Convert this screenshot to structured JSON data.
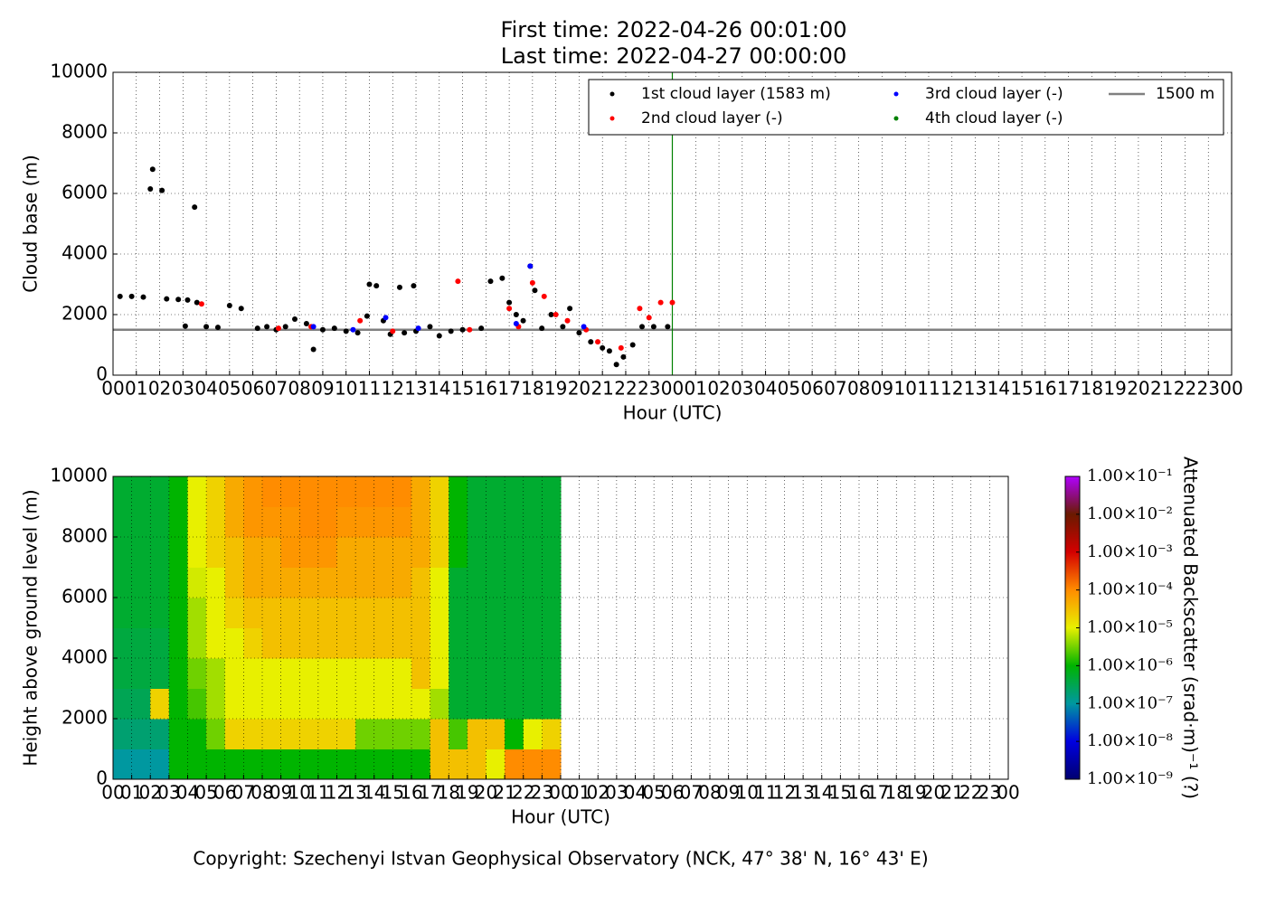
{
  "chart_data": [
    {
      "type": "scatter",
      "title": [
        "First time: 2022-04-26 00:01:00",
        "Last time: 2022-04-27 00:00:00"
      ],
      "xlabel": "Hour (UTC)",
      "ylabel": "Cloud base (m)",
      "xlim": [
        0,
        48
      ],
      "ylim": [
        0,
        10000
      ],
      "xticks": [
        {
          "value": 0,
          "label": "00"
        },
        {
          "value": 1,
          "label": "01"
        },
        {
          "value": 2,
          "label": "02"
        },
        {
          "value": 3,
          "label": "03"
        },
        {
          "value": 4,
          "label": "04"
        },
        {
          "value": 5,
          "label": "05"
        },
        {
          "value": 6,
          "label": "06"
        },
        {
          "value": 7,
          "label": "07"
        },
        {
          "value": 8,
          "label": "08"
        },
        {
          "value": 9,
          "label": "09"
        },
        {
          "value": 10,
          "label": "10"
        },
        {
          "value": 11,
          "label": "11"
        },
        {
          "value": 12,
          "label": "12"
        },
        {
          "value": 13,
          "label": "13"
        },
        {
          "value": 14,
          "label": "14"
        },
        {
          "value": 15,
          "label": "15"
        },
        {
          "value": 16,
          "label": "16"
        },
        {
          "value": 17,
          "label": "17"
        },
        {
          "value": 18,
          "label": "18"
        },
        {
          "value": 19,
          "label": "19"
        },
        {
          "value": 20,
          "label": "20"
        },
        {
          "value": 21,
          "label": "21"
        },
        {
          "value": 22,
          "label": "22"
        },
        {
          "value": 23,
          "label": "23"
        },
        {
          "value": 24,
          "label": "00"
        },
        {
          "value": 25,
          "label": "01"
        },
        {
          "value": 26,
          "label": "02"
        },
        {
          "value": 27,
          "label": "03"
        },
        {
          "value": 28,
          "label": "04"
        },
        {
          "value": 29,
          "label": "05"
        },
        {
          "value": 30,
          "label": "06"
        },
        {
          "value": 31,
          "label": "07"
        },
        {
          "value": 32,
          "label": "08"
        },
        {
          "value": 33,
          "label": "09"
        },
        {
          "value": 34,
          "label": "10"
        },
        {
          "value": 35,
          "label": "11"
        },
        {
          "value": 36,
          "label": "12"
        },
        {
          "value": 37,
          "label": "13"
        },
        {
          "value": 38,
          "label": "14"
        },
        {
          "value": 39,
          "label": "15"
        },
        {
          "value": 40,
          "label": "16"
        },
        {
          "value": 41,
          "label": "17"
        },
        {
          "value": 42,
          "label": "18"
        },
        {
          "value": 43,
          "label": "19"
        },
        {
          "value": 44,
          "label": "20"
        },
        {
          "value": 45,
          "label": "21"
        },
        {
          "value": 46,
          "label": "22"
        },
        {
          "value": 47,
          "label": "23"
        },
        {
          "value": 48,
          "label": "00"
        }
      ],
      "yticks": [
        0,
        2000,
        4000,
        6000,
        8000,
        10000
      ],
      "grid": true,
      "hline": 1500,
      "hline_color": "#808080",
      "hline_name": "1500 m",
      "vline": 24,
      "vline_color": "#008000",
      "series": [
        {
          "name": "1st cloud layer (1583 m)",
          "color": "#000000",
          "x": [
            0.3,
            0.8,
            1.3,
            1.6,
            1.7,
            2.1,
            2.3,
            2.8,
            3.2,
            3.1,
            3.6,
            3.5,
            4.0,
            4.5,
            5.0,
            5.5,
            6.2,
            6.6,
            7.0,
            7.4,
            7.8,
            8.3,
            8.6,
            9.0,
            9.5,
            10.0,
            10.5,
            10.9,
            11.0,
            11.3,
            11.6,
            11.9,
            12.3,
            12.5,
            12.9,
            13.0,
            13.6,
            14.0,
            14.5,
            15.0,
            15.8,
            16.2,
            16.7,
            17.0,
            17.3,
            17.6,
            17.9,
            18.1,
            18.4,
            18.8,
            19.3,
            19.6,
            20.0,
            20.5,
            21.0,
            21.3,
            21.6,
            21.9,
            22.3,
            22.7,
            23.2,
            23.8
          ],
          "values": [
            2600,
            2600,
            2580,
            6150,
            6800,
            6100,
            2520,
            2500,
            2480,
            1620,
            2400,
            5550,
            1600,
            1580,
            2300,
            2200,
            1550,
            1600,
            1500,
            1600,
            1850,
            1700,
            850,
            1500,
            1550,
            1450,
            1400,
            1950,
            3000,
            2950,
            1800,
            1350,
            2900,
            1400,
            2950,
            1450,
            1600,
            1300,
            1450,
            1500,
            1550,
            3100,
            3200,
            2400,
            2000,
            1800,
            3600,
            2800,
            1550,
            2000,
            1600,
            2200,
            1400,
            1100,
            900,
            800,
            350,
            600,
            1000,
            1600,
            1600,
            1600
          ]
        },
        {
          "name": "2nd cloud layer (-)",
          "color": "#ff0000",
          "x": [
            3.8,
            7.1,
            8.5,
            10.6,
            12.0,
            14.8,
            15.3,
            17.0,
            17.4,
            18.0,
            18.5,
            19.0,
            19.5,
            20.3,
            20.8,
            21.8,
            22.6,
            23.0,
            23.5,
            24.0
          ],
          "values": [
            2350,
            1550,
            1600,
            1800,
            1450,
            3100,
            1500,
            2200,
            1600,
            3050,
            2600,
            2000,
            1800,
            1500,
            1100,
            900,
            2200,
            1900,
            2400,
            2400
          ]
        },
        {
          "name": "3rd cloud layer (-)",
          "color": "#0000ff",
          "x": [
            8.6,
            11.7,
            13.1,
            17.9,
            17.3,
            20.2,
            10.3
          ],
          "values": [
            1600,
            1900,
            1550,
            3600,
            1700,
            1600,
            1500
          ]
        },
        {
          "name": "4th cloud layer (-)",
          "color": "#008000",
          "x": [],
          "values": []
        }
      ]
    },
    {
      "type": "heatmap",
      "xlabel": "Hour (UTC)",
      "ylabel": "Height above ground level (m)",
      "xlim": [
        0,
        48
      ],
      "ylim": [
        0,
        10000
      ],
      "xticks": [
        {
          "value": 0,
          "label": "00"
        },
        {
          "value": 1,
          "label": "01"
        },
        {
          "value": 2,
          "label": "02"
        },
        {
          "value": 3,
          "label": "03"
        },
        {
          "value": 4,
          "label": "04"
        },
        {
          "value": 5,
          "label": "05"
        },
        {
          "value": 6,
          "label": "06"
        },
        {
          "value": 7,
          "label": "07"
        },
        {
          "value": 8,
          "label": "08"
        },
        {
          "value": 9,
          "label": "09"
        },
        {
          "value": 10,
          "label": "10"
        },
        {
          "value": 11,
          "label": "11"
        },
        {
          "value": 12,
          "label": "12"
        },
        {
          "value": 13,
          "label": "13"
        },
        {
          "value": 14,
          "label": "14"
        },
        {
          "value": 15,
          "label": "15"
        },
        {
          "value": 16,
          "label": "16"
        },
        {
          "value": 17,
          "label": "17"
        },
        {
          "value": 18,
          "label": "18"
        },
        {
          "value": 19,
          "label": "19"
        },
        {
          "value": 20,
          "label": "20"
        },
        {
          "value": 21,
          "label": "21"
        },
        {
          "value": 22,
          "label": "22"
        },
        {
          "value": 23,
          "label": "23"
        },
        {
          "value": 24,
          "label": "00"
        },
        {
          "value": 25,
          "label": "01"
        },
        {
          "value": 26,
          "label": "02"
        },
        {
          "value": 27,
          "label": "03"
        },
        {
          "value": 28,
          "label": "04"
        },
        {
          "value": 29,
          "label": "05"
        },
        {
          "value": 30,
          "label": "06"
        },
        {
          "value": 31,
          "label": "07"
        },
        {
          "value": 32,
          "label": "08"
        },
        {
          "value": 33,
          "label": "09"
        },
        {
          "value": 34,
          "label": "10"
        },
        {
          "value": 35,
          "label": "11"
        },
        {
          "value": 36,
          "label": "12"
        },
        {
          "value": 37,
          "label": "13"
        },
        {
          "value": 38,
          "label": "14"
        },
        {
          "value": 39,
          "label": "15"
        },
        {
          "value": 40,
          "label": "16"
        },
        {
          "value": 41,
          "label": "17"
        },
        {
          "value": 42,
          "label": "18"
        },
        {
          "value": 43,
          "label": "19"
        },
        {
          "value": 44,
          "label": "20"
        },
        {
          "value": 45,
          "label": "21"
        },
        {
          "value": 46,
          "label": "22"
        },
        {
          "value": 47,
          "label": "23"
        },
        {
          "value": 48,
          "label": "00"
        }
      ],
      "yticks": [
        0,
        2000,
        4000,
        6000,
        8000,
        10000
      ],
      "grid": true,
      "x_edges": [
        0,
        1,
        2,
        3,
        4,
        5,
        6,
        7,
        8,
        9,
        10,
        11,
        12,
        13,
        14,
        15,
        16,
        17,
        18,
        19,
        20,
        21,
        22,
        23,
        24
      ],
      "y_edges": [
        0,
        1000,
        2000,
        3000,
        4000,
        5000,
        6000,
        7000,
        8000,
        9000,
        10000
      ],
      "z": [
        [
          1e-07,
          1e-07,
          1e-07,
          1e-06,
          1e-06,
          1e-06,
          1e-06,
          1e-06,
          1e-06,
          1e-06,
          1e-06,
          1e-06,
          1e-06,
          1e-06,
          1e-06,
          1e-06,
          1e-06,
          3e-05,
          3e-05,
          3e-05,
          1e-05,
          0.0001,
          0.0001,
          0.0001
        ],
        [
          2e-07,
          2e-07,
          2e-07,
          1e-06,
          1e-06,
          3e-06,
          2e-05,
          2e-05,
          2e-05,
          2e-05,
          2e-05,
          2e-05,
          2e-05,
          3e-06,
          3e-06,
          3e-06,
          3e-06,
          3e-05,
          2e-06,
          3e-05,
          3e-05,
          1e-06,
          1e-05,
          2e-05
        ],
        [
          3e-07,
          3e-07,
          2e-05,
          1e-06,
          2e-06,
          5e-06,
          1e-05,
          1e-05,
          1e-05,
          1e-05,
          1e-05,
          1e-05,
          1e-05,
          1e-05,
          1e-05,
          1e-05,
          1e-05,
          5e-06,
          5e-07,
          5e-07,
          5e-07,
          5e-07,
          5e-07,
          5e-07
        ],
        [
          4e-07,
          4e-07,
          4e-07,
          1e-06,
          3e-06,
          5e-06,
          1e-05,
          1e-05,
          1e-05,
          1e-05,
          1e-05,
          1e-05,
          1e-05,
          1e-05,
          1e-05,
          1e-05,
          3e-05,
          1e-05,
          5e-07,
          5e-07,
          5e-07,
          5e-07,
          5e-07,
          5e-07
        ],
        [
          4e-07,
          4e-07,
          4e-07,
          1e-06,
          5e-06,
          1e-05,
          1e-05,
          2e-05,
          3e-05,
          3e-05,
          3e-05,
          3e-05,
          3e-05,
          3e-05,
          3e-05,
          3e-05,
          3e-05,
          1e-05,
          5e-07,
          5e-07,
          5e-07,
          5e-07,
          5e-07,
          5e-07
        ],
        [
          5e-07,
          5e-07,
          5e-07,
          1e-06,
          5e-06,
          1e-05,
          2e-05,
          3e-05,
          3e-05,
          3e-05,
          3e-05,
          3e-05,
          3e-05,
          3e-05,
          3e-05,
          3e-05,
          3e-05,
          1e-05,
          5e-07,
          5e-07,
          5e-07,
          5e-07,
          5e-07,
          5e-07
        ],
        [
          5e-07,
          5e-07,
          5e-07,
          1e-06,
          8e-06,
          1e-05,
          3e-05,
          5e-05,
          5e-05,
          5e-05,
          5e-05,
          5e-05,
          5e-05,
          5e-05,
          5e-05,
          5e-05,
          3e-05,
          1e-05,
          5e-07,
          5e-07,
          5e-07,
          5e-07,
          5e-07,
          5e-07
        ],
        [
          5e-07,
          5e-07,
          5e-07,
          1e-06,
          1e-05,
          2e-05,
          3e-05,
          5e-05,
          5e-05,
          8e-05,
          8e-05,
          8e-05,
          5e-05,
          5e-05,
          5e-05,
          5e-05,
          5e-05,
          2e-05,
          1e-06,
          5e-07,
          5e-07,
          5e-07,
          5e-07,
          5e-07
        ],
        [
          5e-07,
          5e-07,
          5e-07,
          1e-06,
          1e-05,
          2e-05,
          5e-05,
          8e-05,
          8e-05,
          8e-05,
          0.0001,
          0.0001,
          8e-05,
          8e-05,
          8e-05,
          8e-05,
          5e-05,
          2e-05,
          1e-06,
          5e-07,
          5e-07,
          5e-07,
          5e-07,
          5e-07
        ],
        [
          5e-07,
          5e-07,
          5e-07,
          1e-06,
          1e-05,
          2e-05,
          5e-05,
          8e-05,
          0.0001,
          0.0001,
          0.0001,
          0.0001,
          0.0001,
          0.0001,
          0.0001,
          0.0001,
          5e-05,
          2e-05,
          1e-06,
          5e-07,
          5e-07,
          5e-07,
          5e-07,
          5e-07
        ]
      ],
      "clim": [
        1e-09,
        0.1
      ],
      "log_color": true,
      "colormap": [
        "#000070",
        "#0000e0",
        "#0098a0",
        "#00b400",
        "#e8f000",
        "#ff8c00",
        "#d40000",
        "#6a1a00",
        "#b000ff"
      ],
      "cticks": [
        {
          "value": 1e-09,
          "label": "1.00×10⁻⁹"
        },
        {
          "value": 1e-08,
          "label": "1.00×10⁻⁸"
        },
        {
          "value": 1e-07,
          "label": "1.00×10⁻⁷"
        },
        {
          "value": 1e-06,
          "label": "1.00×10⁻⁶"
        },
        {
          "value": 1e-05,
          "label": "1.00×10⁻⁵"
        },
        {
          "value": 0.0001,
          "label": "1.00×10⁻⁴"
        },
        {
          "value": 0.001,
          "label": "1.00×10⁻³"
        },
        {
          "value": 0.01,
          "label": "1.00×10⁻²"
        },
        {
          "value": 0.1,
          "label": "1.00×10⁻¹"
        }
      ],
      "clabel": "Attenuated Backscatter (srad·m)⁻¹ (?)"
    }
  ],
  "copyright": "Copyright: Szechenyi Istvan Geophysical Observatory (NCK, 47° 38' N, 16° 43' E)"
}
